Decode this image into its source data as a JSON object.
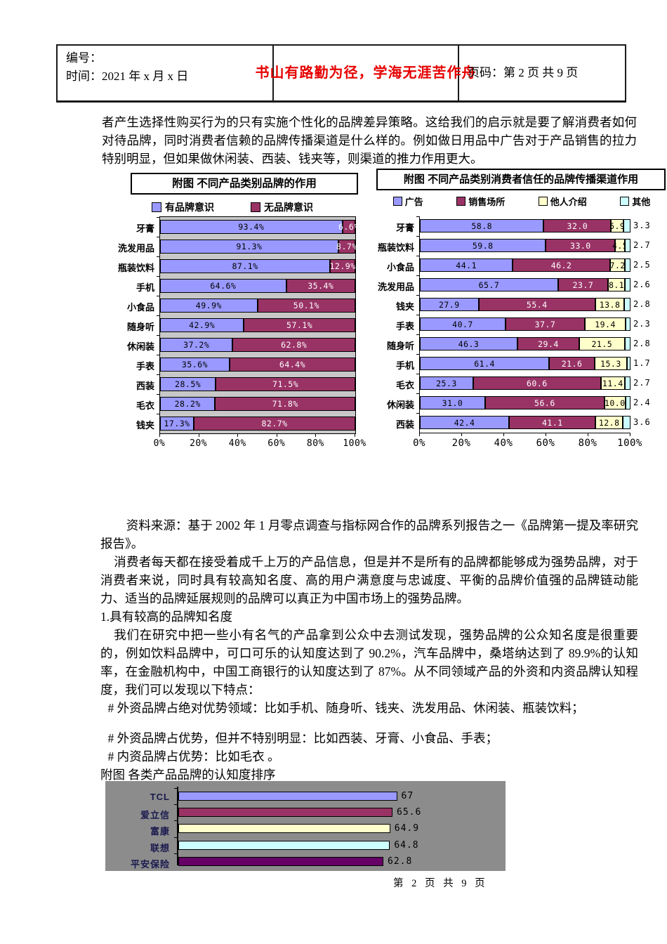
{
  "header": {
    "number_label": "编号：",
    "date_label": "时间：2021 年 x 月 x 日",
    "motto": "书山有路勤为径，学海无涯苦作舟",
    "page_label": "页码：第 2 页  共 9 页"
  },
  "paragraphs": {
    "p1": "者产生选择性购买行为的只有实施个性化的品牌差异策略。这给我们的启示就是要了解消费者如何对待品牌，同时消费者信赖的品牌传播渠道是什么样的。例如做日用品中广告对于产品销售的拉力特别明显，但如果做休闲装、西装、钱夹等，则渠道的推力作用更大。",
    "source": "资料来源：基于 2002 年 1 月零点调查与指标网合作的品牌系列报告之一《品牌第一提及率研究报告》。",
    "p2": "消费者每天都在接受着成千上万的产品信息，但是并不是所有的品牌都能够成为强势品牌，对于消费者来说，同时具有较高知名度、高的用户满意度与忠诚度、平衡的品牌价值强的品牌链动能力、适当的品牌延展规则的品牌可以真正为中国市场上的强势品牌。",
    "h1": "1.具有较高的品牌知名度",
    "p3": "我们在研究中把一些小有名气的产品拿到公众中去测试发现，强势品牌的公众知名度是很重要的，例如饮料品牌中，可口可乐的认知度达到了 90.2%，汽车品牌中，桑塔纳达到了 89.9%的认知率，在金融机构中，中国工商银行的认知度达到了 87%。从不同领域产品的外资和内资品牌认知程度，我们可以发现以下特点：",
    "b1": "# 外资品牌占绝对优势领域：比如手机、随身听、钱夹、洗发用品、休闲装、瓶装饮料；",
    "b2": "# 外资品牌占优势，但并不特别明显：比如西装、牙膏、小食品、手表；",
    "b3": "# 内资品牌占优势：比如毛衣 。",
    "fig3_caption": "附图  各类产品品牌的认知度排序"
  },
  "footer": "第 2 页 共 9 页",
  "chart_data": [
    {
      "type": "bar",
      "stacked": true,
      "orientation": "horizontal",
      "title": "附图  不同产品类别品牌的作用",
      "categories": [
        "牙膏",
        "洗发用品",
        "瓶装饮料",
        "手机",
        "小食品",
        "随身听",
        "休闲装",
        "手表",
        "西装",
        "毛衣",
        "钱夹"
      ],
      "series": [
        {
          "name": "有品牌意识",
          "color": "#9999FF",
          "label_color": "#000000",
          "values": [
            93.4,
            91.3,
            87.1,
            64.6,
            49.9,
            42.9,
            37.2,
            35.6,
            28.5,
            28.2,
            17.3
          ]
        },
        {
          "name": "无品牌意识",
          "color": "#993366",
          "label_color": "#FFFFFF",
          "values": [
            6.6,
            8.7,
            12.9,
            35.4,
            50.1,
            57.1,
            62.8,
            64.4,
            71.5,
            71.8,
            82.7
          ]
        }
      ],
      "value_suffix": "%",
      "x_ticks": [
        "0%",
        "20%",
        "40%",
        "60%",
        "80%",
        "100%"
      ],
      "xlim": [
        0,
        100
      ],
      "plot_background": "#C8C8C8",
      "legend_position": "top"
    },
    {
      "type": "bar",
      "stacked": true,
      "orientation": "horizontal",
      "title": "附图  不同产品类别消费者信任的品牌传播渠道作用",
      "categories": [
        "牙膏",
        "瓶装饮料",
        "小食品",
        "洗发用品",
        "钱夹",
        "手表",
        "随身听",
        "手机",
        "毛衣",
        "休闲装",
        "西装"
      ],
      "series": [
        {
          "name": "广告",
          "color": "#9999FF",
          "label_color": "#000000",
          "values": [
            58.8,
            59.8,
            44.1,
            65.7,
            27.9,
            40.7,
            46.3,
            61.4,
            25.3,
            31.0,
            42.4
          ]
        },
        {
          "name": "销售场所",
          "color": "#993366",
          "label_color": "#FFFFFF",
          "values": [
            32.0,
            33.0,
            46.2,
            23.7,
            55.4,
            37.7,
            29.4,
            21.6,
            60.6,
            56.6,
            41.1
          ]
        },
        {
          "name": "他人介绍",
          "color": "#FFFFCC",
          "label_color": "#000000",
          "values": [
            5.9,
            4.5,
            7.2,
            8.1,
            13.8,
            19.4,
            21.5,
            15.3,
            11.4,
            10.0,
            12.8
          ]
        },
        {
          "name": "其他",
          "color": "#CCFFFF",
          "label_color": "#000000",
          "label_outside": true,
          "values": [
            3.3,
            2.7,
            2.5,
            2.6,
            2.8,
            2.3,
            2.8,
            1.7,
            2.7,
            2.4,
            3.6
          ]
        }
      ],
      "value_suffix": "",
      "x_ticks": [
        "0%",
        "20%",
        "40%",
        "60%",
        "80%",
        "100%"
      ],
      "xlim": [
        0,
        100
      ],
      "plot_background": "#FFFFFF",
      "legend_position": "top"
    },
    {
      "type": "bar",
      "stacked": false,
      "orientation": "horizontal",
      "title": "附图  各类产品品牌的认知度排序",
      "categories": [
        "TCL",
        "爱立信",
        "富康",
        "联想",
        "平安保险"
      ],
      "values": [
        67,
        65.6,
        64.9,
        64.8,
        62.8
      ],
      "labels": [
        "67",
        "65.6",
        "64.9",
        "64.8",
        "62.8"
      ],
      "bar_colors": [
        "#9999FF",
        "#993366",
        "#FFFFCC",
        "#CCFFFF",
        "#660066"
      ],
      "xlim": [
        0,
        100
      ],
      "plot_background": "#8C8C8C",
      "grid": false,
      "legend_position": "none"
    }
  ]
}
